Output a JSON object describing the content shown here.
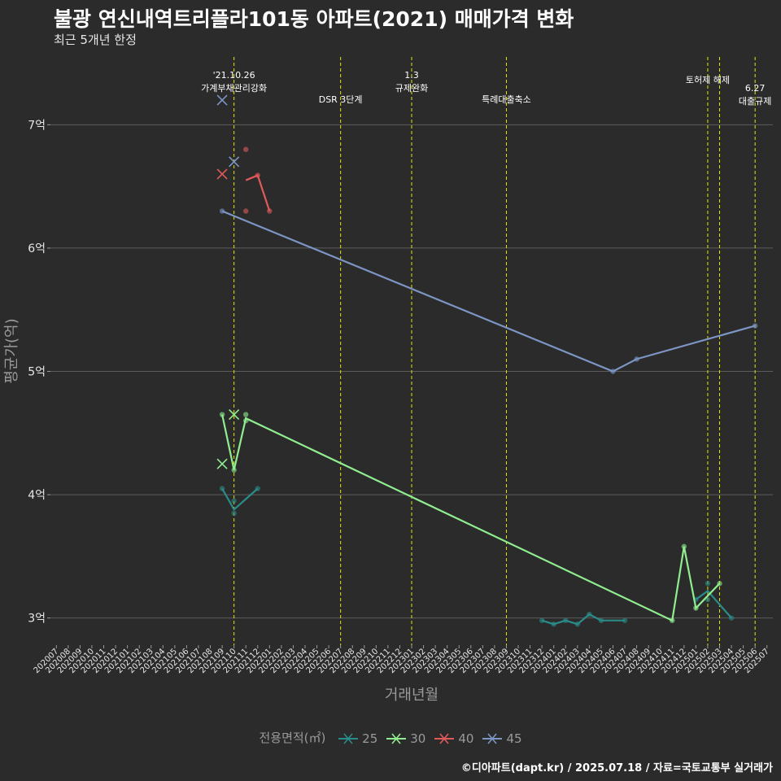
{
  "title": "불광 연신내역트리플라101동 아파트(2021) 매매가격 변화",
  "subtitle": "최근 5개년 한정",
  "caption": "©디아파트(dapt.kr) / 2025.07.18 / 자료=국토교통부 실거래가",
  "chart_data": {
    "type": "line",
    "xlabel": "거래년월",
    "ylabel": "평균가(억)",
    "ylim": [
      2.78,
      7.55
    ],
    "grid": true,
    "legend_position": "bottom",
    "legend_title": "전용면적(㎡)",
    "y_ticks": [
      {
        "value": 3,
        "label": "3억"
      },
      {
        "value": 4,
        "label": "4억"
      },
      {
        "value": 5,
        "label": "5억"
      },
      {
        "value": 6,
        "label": "6억"
      },
      {
        "value": 7,
        "label": "7억"
      }
    ],
    "x_categories": [
      "202007",
      "202008",
      "202009",
      "202010",
      "202011",
      "202012",
      "202101",
      "202102",
      "202103",
      "202104",
      "202105",
      "202106",
      "202107",
      "202108",
      "202109",
      "202110",
      "202111",
      "202112",
      "202201",
      "202202",
      "202203",
      "202204",
      "202205",
      "202206",
      "202207",
      "202208",
      "202209",
      "202210",
      "202211",
      "202212",
      "202301",
      "202302",
      "202303",
      "202304",
      "202305",
      "202306",
      "202307",
      "202308",
      "202309",
      "202310",
      "202311",
      "202312",
      "202401",
      "202402",
      "202403",
      "202404",
      "202405",
      "202406",
      "202407",
      "202408",
      "202409",
      "202410",
      "202411",
      "202412",
      "202501",
      "202502",
      "202503",
      "202504",
      "202505",
      "202506",
      "202507"
    ],
    "annotations": [
      {
        "x": "202110",
        "lines": [
          "'21.10.26",
          "가계부채관리강화"
        ]
      },
      {
        "x": "202207",
        "lines": [
          "DSR 3단계"
        ]
      },
      {
        "x": "202301",
        "lines": [
          "1.3",
          "규제완화"
        ]
      },
      {
        "x": "202309",
        "lines": [
          "특례대출축소"
        ]
      },
      {
        "x": "202502",
        "lines": [
          "토허제 해제"
        ]
      },
      {
        "x": "202503",
        "lines": []
      },
      {
        "x": "202506",
        "lines": [
          "6.27",
          "대출규제"
        ]
      }
    ],
    "series": [
      {
        "name": "25",
        "color": "#2a8c88",
        "line": [
          [
            "202109",
            4.05
          ],
          [
            "202110",
            3.88
          ],
          [
            "202112",
            4.05
          ]
        ],
        "points": [
          [
            "202109",
            4.05
          ],
          [
            "202110",
            3.95
          ],
          [
            "202110",
            3.85
          ],
          [
            "202112",
            4.05
          ],
          [
            "202312",
            2.98
          ],
          [
            "202401",
            2.95
          ],
          [
            "202402",
            2.98
          ],
          [
            "202403",
            2.95
          ],
          [
            "202404",
            3.03
          ],
          [
            "202405",
            2.98
          ],
          [
            "202407",
            2.98
          ],
          [
            "202501",
            3.15
          ],
          [
            "202502",
            3.15
          ],
          [
            "202502",
            3.28
          ],
          [
            "202504",
            3.0
          ]
        ],
        "segments": [
          [
            [
              "202312",
              2.98
            ],
            [
              "202401",
              2.95
            ],
            [
              "202402",
              2.98
            ],
            [
              "202403",
              2.95
            ],
            [
              "202404",
              3.03
            ],
            [
              "202405",
              2.98
            ],
            [
              "202407",
              2.98
            ]
          ],
          [
            [
              "202501",
              3.15
            ],
            [
              "202502",
              3.22
            ],
            [
              "202504",
              3.0
            ]
          ]
        ],
        "crosses": []
      },
      {
        "name": "30",
        "color": "#90ee90",
        "line": [
          [
            "202109",
            4.65
          ],
          [
            "202110",
            4.2
          ],
          [
            "202111",
            4.62
          ],
          [
            "202411",
            2.98
          ],
          [
            "202412",
            3.58
          ],
          [
            "202501",
            3.08
          ],
          [
            "202503",
            3.28
          ]
        ],
        "points": [
          [
            "202109",
            4.65
          ],
          [
            "202110",
            4.2
          ],
          [
            "202111",
            4.65
          ],
          [
            "202111",
            4.6
          ],
          [
            "202411",
            2.98
          ],
          [
            "202412",
            3.58
          ],
          [
            "202501",
            3.08
          ],
          [
            "202503",
            3.28
          ]
        ],
        "segments": [],
        "crosses": [
          [
            "202109",
            4.25
          ],
          [
            "202110",
            4.65
          ]
        ]
      },
      {
        "name": "40",
        "color": "#e05a5a",
        "line": [
          [
            "202111",
            6.55
          ],
          [
            "202112",
            6.59
          ],
          [
            "202201",
            6.3
          ]
        ],
        "points": [
          [
            "202111",
            6.8
          ],
          [
            "202111",
            6.3
          ],
          [
            "202112",
            6.59
          ],
          [
            "202201",
            6.3
          ]
        ],
        "segments": [],
        "crosses": [
          [
            "202109",
            6.6
          ]
        ]
      },
      {
        "name": "45",
        "color": "#7c95c4",
        "line": [
          [
            "202109",
            6.3
          ],
          [
            "202406",
            5.0
          ],
          [
            "202408",
            5.1
          ],
          [
            "202506",
            5.37
          ]
        ],
        "points": [
          [
            "202109",
            6.3
          ],
          [
            "202406",
            5.0
          ],
          [
            "202408",
            5.1
          ],
          [
            "202506",
            5.37
          ]
        ],
        "segments": [],
        "crosses": [
          [
            "202109",
            7.2
          ],
          [
            "202110",
            6.7
          ]
        ]
      }
    ]
  }
}
